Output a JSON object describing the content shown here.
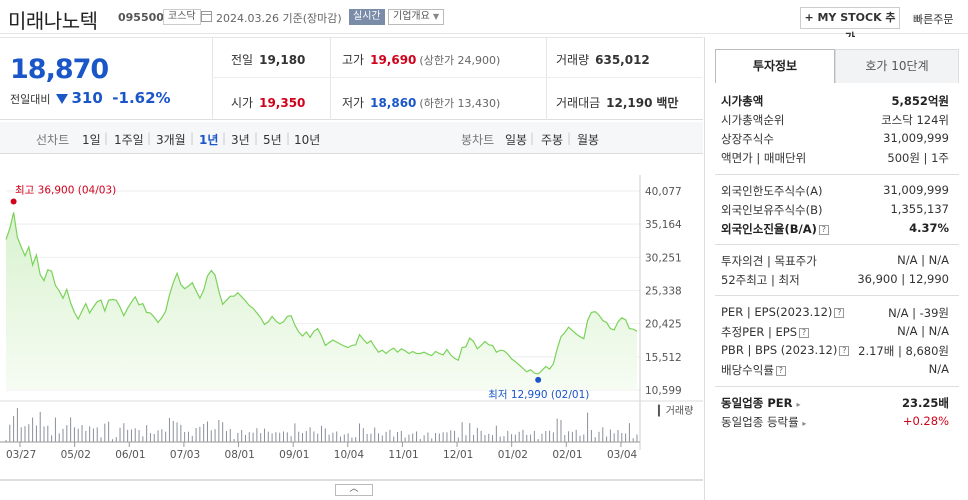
{
  "header": {
    "stock_name": "미래나노텍",
    "stock_code": "095500",
    "market": "코스닥",
    "date_text": "2024.03.26 기준(장마감)",
    "realtime": "실시간",
    "company_overview": "기업개요",
    "my_stock": "+ MY STOCK 추가",
    "quick_order": "빠른주문"
  },
  "summary": {
    "price": "18,870",
    "change_label": "전일대비",
    "change_amount": "310",
    "change_pct": "-1.62%",
    "prev_close_label": "전일",
    "prev_close": "19,180",
    "high_label": "고가",
    "high": "19,690",
    "upper_limit": "(상한가 24,900)",
    "volume_label": "거래량",
    "volume": "635,012",
    "open_label": "시가",
    "open": "19,350",
    "low_label": "저가",
    "low": "18,860",
    "lower_limit": "(하한가 13,430)",
    "amount_label": "거래대금",
    "amount": "12,190",
    "amount_unit": "백만"
  },
  "period_tabs": {
    "line_chart": "선차트",
    "d1": "1일",
    "w1": "1주일",
    "m3": "3개월",
    "y1": "1년",
    "y3": "3년",
    "y5": "5년",
    "y10": "10년",
    "candle_chart": "봉차트",
    "daily": "일봉",
    "weekly": "주봉",
    "monthly": "월봉"
  },
  "chart_data": {
    "type": "area",
    "y_ticks": [
      "40,077",
      "35,164",
      "30,251",
      "25,338",
      "20,425",
      "15,512",
      "10,599"
    ],
    "ylim": [
      10599,
      40077
    ],
    "x_ticks": [
      "03/27",
      "05/02",
      "06/01",
      "07/03",
      "08/01",
      "09/01",
      "10/04",
      "11/01",
      "12/01",
      "01/02",
      "02/01",
      "03/04"
    ],
    "high_annotation": "최고 36,900 (04/03)",
    "low_annotation": "최저 12,990 (02/01)",
    "high_value": 36900,
    "low_value": 12990,
    "volume_label": "거래량",
    "values": [
      32900,
      34500,
      36900,
      33200,
      31800,
      30500,
      31800,
      29100,
      30600,
      27700,
      26800,
      28400,
      28200,
      26100,
      25300,
      24200,
      25500,
      23500,
      22100,
      21100,
      22300,
      23400,
      22000,
      22900,
      23700,
      23900,
      22300,
      23900,
      24000,
      23900,
      22900,
      21600,
      22700,
      23600,
      24400,
      23200,
      23400,
      22100,
      22000,
      21400,
      20600,
      21300,
      22300,
      24700,
      26500,
      27900,
      26200,
      25600,
      26000,
      26500,
      25300,
      24200,
      25400,
      27500,
      28300,
      27600,
      25200,
      23300,
      23900,
      24500,
      24500,
      25000,
      24400,
      23800,
      23100,
      22700,
      22000,
      21300,
      20300,
      20700,
      21500,
      20800,
      20400,
      20700,
      21500,
      21600,
      20200,
      19200,
      18600,
      19200,
      18400,
      19300,
      19700,
      18600,
      17200,
      17600,
      18000,
      17700,
      17400,
      17100,
      16900,
      17200,
      17300,
      18800,
      18100,
      17500,
      17900,
      17000,
      16200,
      16500,
      16000,
      16500,
      16800,
      16200,
      16700,
      16400,
      16000,
      16300,
      16000,
      16000,
      16200,
      15900,
      15700,
      16300,
      16000,
      15800,
      16600,
      15800,
      15300,
      15000,
      16900,
      17000,
      18300,
      17800,
      16700,
      17200,
      17800,
      17300,
      17200,
      16200,
      16500,
      16400,
      15900,
      15200,
      14800,
      14300,
      13800,
      13300,
      13600,
      13100,
      12990,
      13500,
      14100,
      13700,
      14500,
      16700,
      18500,
      19100,
      19900,
      19400,
      18900,
      18500,
      18200,
      20900,
      22100,
      22200,
      21700,
      20900,
      20600,
      19700,
      19500,
      20700,
      21300,
      21000,
      19700,
      19600,
      19300
    ]
  },
  "invest_panel": {
    "tab_active": "투자정보",
    "tab_inactive": "호가 10단계",
    "market_cap_label": "시가총액",
    "market_cap": "5,852억원",
    "cap_rank_label": "시가총액순위",
    "cap_rank": "코스닥 124위",
    "shares_label": "상장주식수",
    "shares": "31,009,999",
    "par_label": "액면가 | 매매단위",
    "par": "500원 | 1주",
    "foreign_limit_label": "외국인한도주식수(A)",
    "foreign_limit": "31,009,999",
    "foreign_hold_label": "외국인보유주식수(B)",
    "foreign_hold": "1,355,137",
    "foreign_ratio_label": "외국인소진율(B/A)",
    "foreign_ratio": "4.37%",
    "opinion_label": "투자의견 | 목표주가",
    "opinion": "N/A | N/A",
    "week52_label": "52주최고 | 최저",
    "week52": "36,900 | 12,990",
    "per_label": "PER | EPS(2023.12)",
    "per": "N/A | -39원",
    "est_per_label": "추정PER | EPS",
    "est_per": "N/A | N/A",
    "pbr_label": "PBR | BPS (2023.12)",
    "pbr": "2.17배 | 8,680원",
    "dividend_label": "배당수익률",
    "dividend": "N/A",
    "sector_per_label": "동일업종 PER",
    "sector_per": "23.25배",
    "sector_change_label": "동일업종 등락률",
    "sector_change": "+0.28%"
  },
  "colors": {
    "price_blue": "#1a56c8",
    "up_red": "#d0021b",
    "line_green": "#7bd25a",
    "area_fill": "#eaf8e4"
  }
}
